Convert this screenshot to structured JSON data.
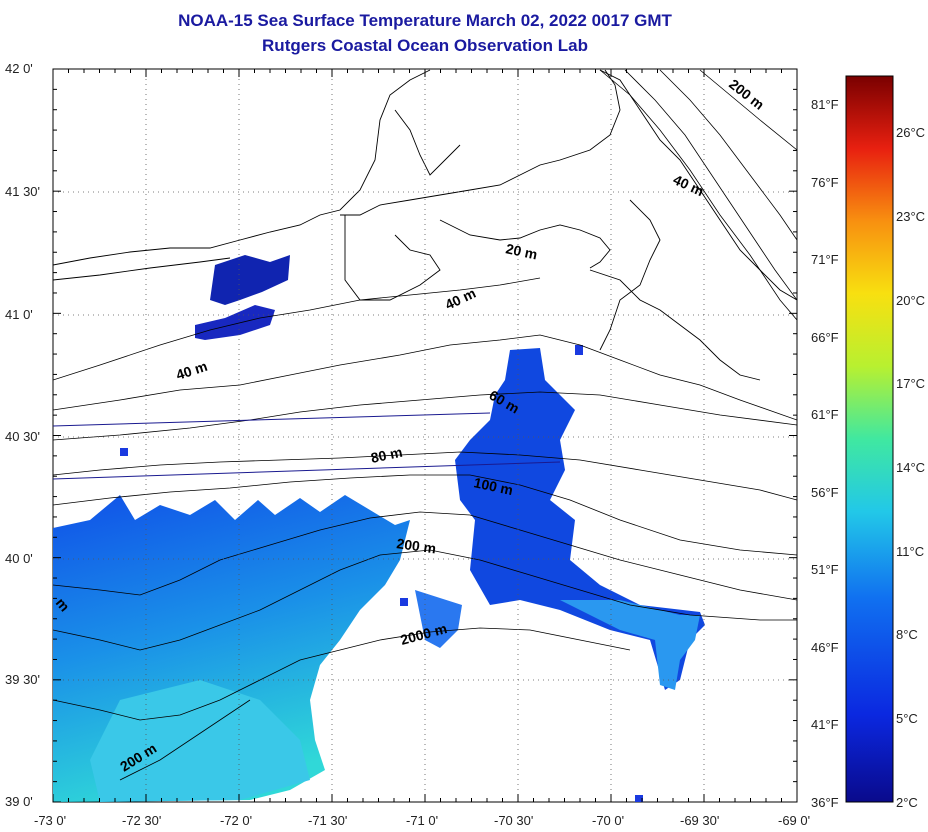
{
  "title": {
    "line1": "NOAA-15 Sea Surface Temperature March 02, 2022 0017 GMT",
    "line2": "Rutgers Coastal Ocean Observation Lab"
  },
  "lat_labels": [
    "42 0'",
    "41 30'",
    "41 0'",
    "40 30'",
    "40 0'",
    "39 30'",
    "39 0'"
  ],
  "lon_labels": [
    "-73 0'",
    "-72 30'",
    "-72 0'",
    "-71 30'",
    "-71 0'",
    "-70 30'",
    "-70 0'",
    "-69 30'",
    "-69 0'"
  ],
  "fahrenheit_labels": [
    "81°F",
    "76°F",
    "71°F",
    "66°F",
    "61°F",
    "56°F",
    "51°F",
    "46°F",
    "41°F",
    "36°F"
  ],
  "celsius_labels": [
    "26°C",
    "23°C",
    "20°C",
    "17°C",
    "14°C",
    "11°C",
    "8°C",
    "5°C",
    "2°C"
  ],
  "depth_labels": [
    "200 m",
    "40 m",
    "20 m",
    "40 m",
    "40 m",
    "60 m",
    "80 m",
    "100 m",
    "200 m",
    "2000 m",
    "200 m",
    "m"
  ],
  "colorbar": {
    "stops": [
      "#0a0a8c",
      "#0b28e0",
      "#1070f0",
      "#22c8e8",
      "#40e8a0",
      "#b8f030",
      "#f8e010",
      "#f89010",
      "#e82010",
      "#7a0000"
    ]
  }
}
